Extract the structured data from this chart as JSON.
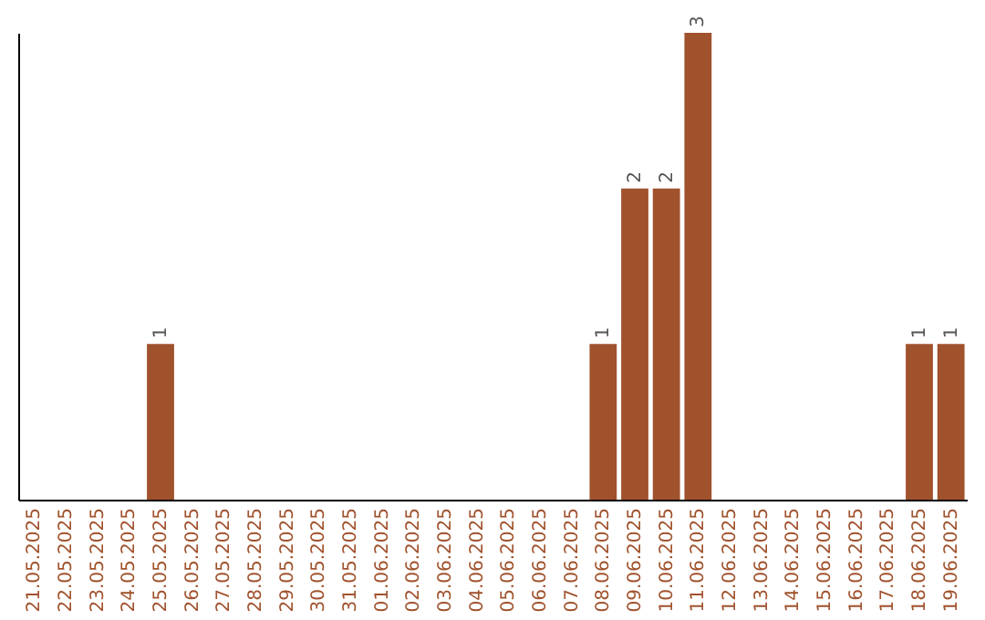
{
  "chart_data": {
    "type": "bar",
    "categories": [
      "21.05.2025",
      "22.05.2025",
      "23.05.2025",
      "24.05.2025",
      "25.05.2025",
      "26.05.2025",
      "27.05.2025",
      "28.05.2025",
      "29.05.2025",
      "30.05.2025",
      "31.05.2025",
      "01.06.2025",
      "02.06.2025",
      "03.06.2025",
      "04.06.2025",
      "05.06.2025",
      "06.06.2025",
      "07.06.2025",
      "08.06.2025",
      "09.06.2025",
      "10.06.2025",
      "11.06.2025",
      "12.06.2025",
      "13.06.2025",
      "14.06.2025",
      "15.06.2025",
      "16.06.2025",
      "17.06.2025",
      "18.06.2025",
      "19.06.2025"
    ],
    "values": [
      0,
      0,
      0,
      0,
      1,
      0,
      0,
      0,
      0,
      0,
      0,
      0,
      0,
      0,
      0,
      0,
      0,
      0,
      1,
      2,
      2,
      3,
      0,
      0,
      0,
      0,
      0,
      0,
      1,
      1
    ],
    "value_labels": [
      null,
      null,
      null,
      null,
      "1",
      null,
      null,
      null,
      null,
      null,
      null,
      null,
      null,
      null,
      null,
      null,
      null,
      null,
      "1",
      "2",
      "2",
      "3",
      null,
      null,
      null,
      null,
      null,
      null,
      "1",
      "1"
    ],
    "color": "#a0522d",
    "tick_labels": "x"
  }
}
